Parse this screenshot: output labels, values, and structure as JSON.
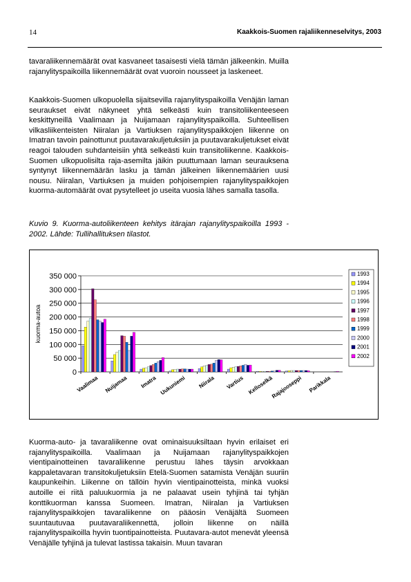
{
  "header": {
    "page_number": "14",
    "running_title": "Kaakkois-Suomen rajaliikenneselvitys, 2003"
  },
  "paragraphs": [
    "tavaraliikennemäärät ovat kasvaneet tasaisesti vielä tämän jälkeenkin. Muilla rajanylityspaikoilla liikennemäärät ovat vuoroin nousseet ja laskeneet.",
    "Kaakkois-Suomen ulkopuolella sijaitsevilla rajanylityspaikoilla Venäjän laman seuraukset eivät näkyneet yhtä selkeästi kuin transitoliikenteeseen keskittyneillä Vaalimaan ja Nuijamaan rajanylityspaikoilla. Suhteellisen vilkasliikenteisten Niiralan ja Vartiuksen rajanylityspaikkojen liikenne on Imatran tavoin painottunut puutavarakuljetuksiin ja puutavarakuljetukset eivät reagoi talouden suhdanteisiin yhtä selkeästi kuin transitoliikenne. Kaakkois-Suomen ulkopuolisilta raja-asemilta jäikin puuttumaan laman seurauksena syntynyt liikennemäärän lasku ja tämän jälkeinen liikennemäärien uusi nousu. Niiralan, Vartiuksen ja muiden pohjoisempien rajanylityspaikkojen kuorma-automäärät ovat pysytelleet jo useita vuosia lähes samalla tasolla.",
    "Kuorma-auto- ja tavaraliikenne ovat ominaisuuksiltaan hyvin erilaiset eri rajanylityspaikoilla. Vaalimaan ja Nuijamaan rajanylityspaikkojen vientipainotteinen tavaraliikenne perustuu lähes täysin arvokkaan kappaletavaran transitokuljetuksiin Etelä-Suomen satamista Venäjän suuriin kaupunkeihin. Liikenne on tällöin hyvin vientipainotteista, minkä vuoksi autoille ei riitä paluukuormia ja ne palaavat usein tyhjinä tai tyhjän konttikuorman kanssa Suomeen. Imatran, Niiralan ja Vartiuksen rajanylityspaikkojen tavaraliikenne on pääosin Venäjältä Suomeen suuntautuvaa puutavaraliikennettä, jolloin liikenne on näillä rajanylityspaikoilla hyvin tuontipainotteista. Puutavara-autot menevät yleensä Venäjälle tyhjinä ja tulevat lastissa takaisin. Muun tavaran"
  ],
  "figure": {
    "caption": "Kuvio 9. Kuorma-autoliikenteen kehitys itärajan rajanylityspaikoilla 1993 - 2002. Lähde: Tullihallituksen tilastot."
  },
  "chart_data": {
    "type": "bar",
    "title": "",
    "xlabel": "",
    "ylabel": "kuorma-autoa",
    "ylim": [
      0,
      350000
    ],
    "yticks": [
      0,
      50000,
      100000,
      150000,
      200000,
      250000,
      300000,
      350000
    ],
    "ytick_labels": [
      "0",
      "50 000",
      "100 000",
      "150 000",
      "200 000",
      "250 000",
      "300 000",
      "350 000"
    ],
    "grid": true,
    "legend_position": "right",
    "categories": [
      "Vaalimaa",
      "Nuijamaa",
      "Imatra",
      "Uukuniemi",
      "Niirala",
      "Vartius",
      "Kelloselkä",
      "Rajajooseppi",
      "Parikkala"
    ],
    "series": [
      {
        "name": "1993",
        "color": "#9999FF",
        "values": [
          95000,
          40000,
          10000,
          3000,
          12000,
          10000,
          2000,
          3000,
          0
        ]
      },
      {
        "name": "1994",
        "color": "#FFFF00",
        "values": [
          163000,
          63000,
          13000,
          8000,
          18000,
          15000,
          2000,
          4000,
          0
        ]
      },
      {
        "name": "1995",
        "color": "#FFFFCC",
        "values": [
          185000,
          72000,
          15000,
          9000,
          22000,
          17000,
          2000,
          5000,
          0
        ]
      },
      {
        "name": "1996",
        "color": "#CCFFFF",
        "values": [
          195000,
          78000,
          18000,
          10000,
          23000,
          18000,
          2000,
          5000,
          0
        ]
      },
      {
        "name": "1997",
        "color": "#660066",
        "values": [
          303000,
          132000,
          23000,
          10000,
          27000,
          20000,
          2000,
          5000,
          0
        ]
      },
      {
        "name": "1998",
        "color": "#FF8080",
        "values": [
          263000,
          130000,
          27000,
          11000,
          28000,
          22000,
          2000,
          5000,
          0
        ]
      },
      {
        "name": "1999",
        "color": "#0066CC",
        "values": [
          190000,
          108000,
          32000,
          11000,
          32000,
          24000,
          3000,
          5000,
          0
        ]
      },
      {
        "name": "2000",
        "color": "#CCCCFF",
        "values": [
          185000,
          78000,
          37000,
          10000,
          42000,
          27000,
          3000,
          5000,
          0
        ]
      },
      {
        "name": "2001",
        "color": "#000080",
        "values": [
          180000,
          130000,
          42000,
          10000,
          45000,
          24000,
          6000,
          5000,
          1000
        ]
      },
      {
        "name": "2002",
        "color": "#FF00FF",
        "values": [
          192000,
          144000,
          52000,
          10000,
          44000,
          25000,
          6000,
          4000,
          2000
        ]
      }
    ]
  }
}
